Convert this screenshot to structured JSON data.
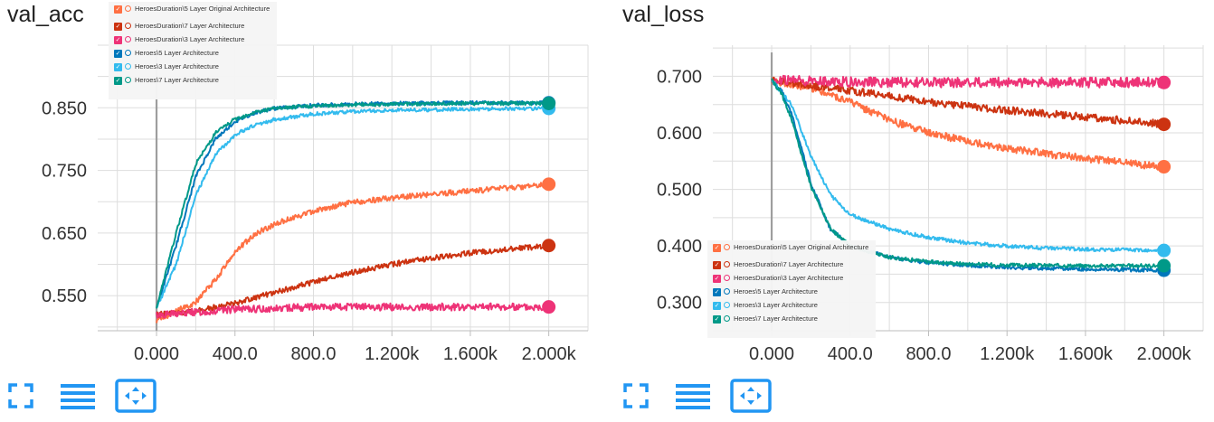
{
  "colors": {
    "grid": "#dddddd",
    "zero_line": "#9e9e9e",
    "icon_blue": "#2196f3"
  },
  "legend_entries": [
    {
      "label": "HeroesDuration\\5 Layer Original Architecture",
      "color": "#ff7043"
    },
    {
      "label": "HeroesDuration\\7 Layer Architecture",
      "color": "#cc3311"
    },
    {
      "label": "HeroesDuration\\3 Layer Architecture",
      "color": "#ee3377"
    },
    {
      "label": "Heroes\\5 Layer Architecture",
      "color": "#0077bb"
    },
    {
      "label": "Heroes\\3 Layer Architecture",
      "color": "#33bbee"
    },
    {
      "label": "Heroes\\7 Layer Architecture",
      "color": "#009988"
    }
  ],
  "toolbar": {
    "icons": [
      "fullscreen-icon",
      "data-series-list-icon",
      "fit-domain-icon"
    ]
  },
  "chart_data": [
    {
      "type": "line",
      "title": "val_acc",
      "xlabel": "",
      "ylabel": "",
      "grid": true,
      "legend_position": "top-left",
      "xlim": [
        -300,
        2200
      ],
      "ylim": [
        0.494,
        0.95
      ],
      "xticks": [
        0,
        400,
        800,
        1200,
        1600,
        2000
      ],
      "xtick_labels": [
        "0.000",
        "400.0",
        "800.0",
        "1.200k",
        "1.600k",
        "2.000k"
      ],
      "yticks": [
        0.55,
        0.65,
        0.75,
        0.85
      ],
      "ytick_labels": [
        "0.550",
        "0.650",
        "0.750",
        "0.850"
      ],
      "series": [
        {
          "name": "HeroesDuration\\5 Layer Original Architecture",
          "color": "#ff7043",
          "x": [
            0,
            100,
            200,
            300,
            400,
            500,
            600,
            800,
            1000,
            1200,
            1400,
            1600,
            1800,
            2000
          ],
          "y": [
            0.51,
            0.525,
            0.54,
            0.575,
            0.62,
            0.648,
            0.664,
            0.685,
            0.699,
            0.706,
            0.712,
            0.717,
            0.722,
            0.728
          ]
        },
        {
          "name": "HeroesDuration\\7 Layer Architecture",
          "color": "#cc3311",
          "x": [
            0,
            200,
            400,
            600,
            800,
            1000,
            1200,
            1400,
            1600,
            1800,
            2000
          ],
          "y": [
            0.52,
            0.525,
            0.538,
            0.555,
            0.572,
            0.587,
            0.6,
            0.61,
            0.618,
            0.624,
            0.63
          ]
        },
        {
          "name": "HeroesDuration\\3 Layer Architecture",
          "color": "#ee3377",
          "x": [
            0,
            400,
            800,
            1200,
            1600,
            2000
          ],
          "y": [
            0.52,
            0.528,
            0.532,
            0.532,
            0.532,
            0.532
          ]
        },
        {
          "name": "Heroes\\5 Layer Architecture",
          "color": "#0077bb",
          "x": [
            0,
            100,
            200,
            300,
            400,
            500,
            600,
            800,
            1000,
            1200,
            1600,
            2000
          ],
          "y": [
            0.53,
            0.63,
            0.74,
            0.8,
            0.828,
            0.842,
            0.849,
            0.854,
            0.856,
            0.857,
            0.858,
            0.858
          ]
        },
        {
          "name": "Heroes\\3 Layer Architecture",
          "color": "#33bbee",
          "x": [
            0,
            100,
            200,
            300,
            400,
            500,
            600,
            800,
            1000,
            1200,
            1600,
            2000
          ],
          "y": [
            0.53,
            0.6,
            0.71,
            0.775,
            0.807,
            0.822,
            0.831,
            0.84,
            0.844,
            0.846,
            0.848,
            0.849
          ]
        },
        {
          "name": "Heroes\\7 Layer Architecture",
          "color": "#009988",
          "x": [
            0,
            100,
            200,
            300,
            400,
            500,
            600,
            800,
            1000,
            1200,
            1600,
            2000
          ],
          "y": [
            0.53,
            0.65,
            0.76,
            0.81,
            0.832,
            0.843,
            0.849,
            0.853,
            0.855,
            0.856,
            0.857,
            0.857
          ]
        }
      ]
    },
    {
      "type": "line",
      "title": "val_loss",
      "xlabel": "",
      "ylabel": "",
      "grid": true,
      "legend_position": "bottom-left",
      "xlim": [
        -300,
        2200
      ],
      "ylim": [
        0.25,
        0.755
      ],
      "xticks": [
        0,
        400,
        800,
        1200,
        1600,
        2000
      ],
      "xtick_labels": [
        "0.000",
        "400.0",
        "800.0",
        "1.200k",
        "1.600k",
        "2.000k"
      ],
      "yticks": [
        0.3,
        0.4,
        0.5,
        0.6,
        0.7
      ],
      "ytick_labels": [
        "0.300",
        "0.400",
        "0.500",
        "0.600",
        "0.700"
      ],
      "series": [
        {
          "name": "HeroesDuration\\5 Layer Original Architecture",
          "color": "#ff7043",
          "x": [
            0,
            200,
            400,
            600,
            800,
            1000,
            1200,
            1400,
            1600,
            1800,
            2000
          ],
          "y": [
            0.693,
            0.68,
            0.655,
            0.622,
            0.6,
            0.585,
            0.573,
            0.563,
            0.555,
            0.547,
            0.54
          ]
        },
        {
          "name": "HeroesDuration\\7 Layer Architecture",
          "color": "#cc3311",
          "x": [
            0,
            400,
            800,
            1200,
            1600,
            2000
          ],
          "y": [
            0.693,
            0.675,
            0.655,
            0.64,
            0.628,
            0.615
          ]
        },
        {
          "name": "HeroesDuration\\3 Layer Architecture",
          "color": "#ee3377",
          "x": [
            0,
            400,
            800,
            1200,
            1600,
            2000
          ],
          "y": [
            0.693,
            0.69,
            0.689,
            0.689,
            0.689,
            0.689
          ]
        },
        {
          "name": "Heroes\\5 Layer Architecture",
          "color": "#0077bb",
          "x": [
            0,
            50,
            100,
            150,
            200,
            300,
            400,
            600,
            800,
            1000,
            1200,
            1600,
            2000
          ],
          "y": [
            0.693,
            0.675,
            0.635,
            0.575,
            0.51,
            0.43,
            0.4,
            0.38,
            0.37,
            0.366,
            0.362,
            0.359,
            0.357
          ]
        },
        {
          "name": "Heroes\\3 Layer Architecture",
          "color": "#33bbee",
          "x": [
            0,
            100,
            200,
            300,
            400,
            600,
            800,
            1000,
            1200,
            1400,
            1600,
            1800,
            2000
          ],
          "y": [
            0.693,
            0.65,
            0.56,
            0.49,
            0.455,
            0.43,
            0.415,
            0.405,
            0.4,
            0.396,
            0.394,
            0.393,
            0.392
          ]
        },
        {
          "name": "Heroes\\7 Layer Architecture",
          "color": "#009988",
          "x": [
            0,
            50,
            100,
            150,
            200,
            300,
            400,
            600,
            800,
            1000,
            1200,
            1600,
            2000
          ],
          "y": [
            0.693,
            0.67,
            0.625,
            0.565,
            0.505,
            0.43,
            0.4,
            0.38,
            0.372,
            0.368,
            0.366,
            0.365,
            0.365
          ]
        }
      ]
    }
  ]
}
